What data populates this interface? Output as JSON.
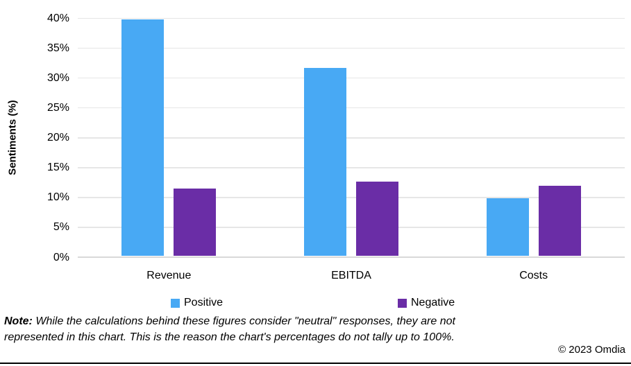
{
  "chart_data": {
    "type": "bar",
    "title": "",
    "categories": [
      "Revenue",
      "EBITDA",
      "Costs"
    ],
    "series": [
      {
        "name": "Positive",
        "color": "#48A9F4",
        "values": [
          39.5,
          31.4,
          9.6
        ]
      },
      {
        "name": "Negative",
        "color": "#6A2DA6",
        "values": [
          11.3,
          12.4,
          11.7
        ]
      }
    ],
    "xlabel": "",
    "ylabel": "Sentiments (%)",
    "ylim": [
      0,
      40
    ],
    "ytick_step": 5,
    "ytick_labels": [
      "0%",
      "5%",
      "10%",
      "15%",
      "20%",
      "25%",
      "30%",
      "35%",
      "40%"
    ],
    "grid": true,
    "legend_position": "bottom",
    "grid_color": "#E6E6E6",
    "axis_line_color": "#D9D9D9"
  },
  "legend": {
    "items": [
      {
        "label": "Positive",
        "color": "#48A9F4"
      },
      {
        "label": "Negative",
        "color": "#6A2DA6"
      }
    ]
  },
  "note": {
    "prefix": "Note:",
    "line1": "While the calculations behind these figures consider \"neutral\" responses, they are not",
    "line2": "represented in this chart. This is the reason the chart's percentages do not tally up to 100%."
  },
  "footer": {
    "copyright": "© 2023 Omdia"
  }
}
